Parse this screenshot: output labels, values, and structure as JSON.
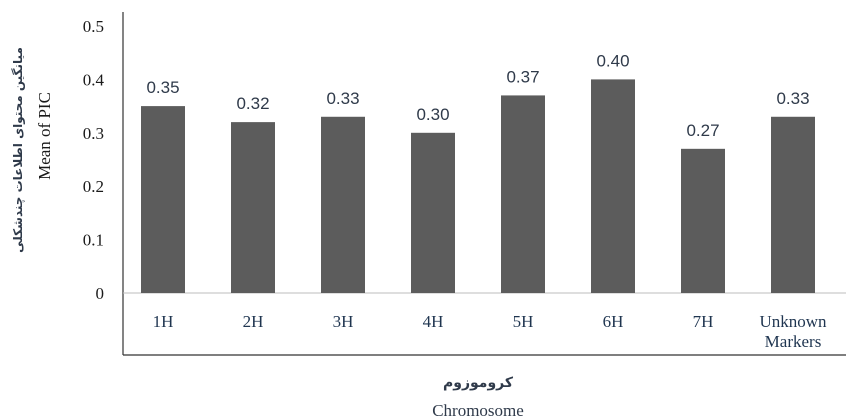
{
  "chart_data": {
    "type": "bar",
    "categories": [
      "1H",
      "2H",
      "3H",
      "4H",
      "5H",
      "6H",
      "7H",
      [
        "Unknown",
        "Markers"
      ]
    ],
    "values": [
      0.35,
      0.32,
      0.33,
      0.3,
      0.37,
      0.4,
      0.27,
      0.33
    ],
    "data_labels": [
      "0.35",
      "0.32",
      "0.33",
      "0.30",
      "0.37",
      "0.40",
      "0.27",
      "0.33"
    ],
    "ylim": [
      0,
      0.5
    ],
    "yticks": [
      {
        "value": 0,
        "label": "0"
      },
      {
        "value": 0.1,
        "label": "0.1"
      },
      {
        "value": 0.2,
        "label": "0.2"
      },
      {
        "value": 0.3,
        "label": "0.3"
      },
      {
        "value": 0.4,
        "label": "0.4"
      },
      {
        "value": 0.5,
        "label": "0.5"
      }
    ],
    "ylabel": "Mean of PIC",
    "ylabel_fa": "میانگین محتوای اطلاعات چندشکلی",
    "xlabel": "Chromosome",
    "xlabel_fa": "کروموزوم",
    "bar_color": "#5c5c5c",
    "grid": false
  }
}
